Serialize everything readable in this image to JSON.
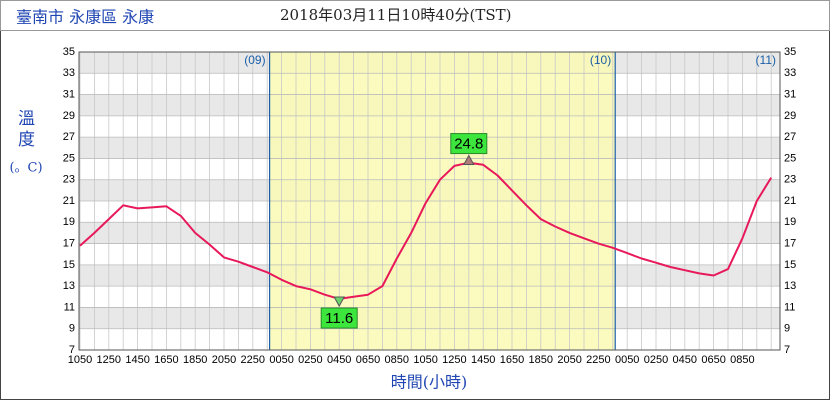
{
  "chart_data": {
    "type": "line",
    "title": "臺南市 永康區 永康",
    "subtitle": "2018年03月11日10時40分(TST)",
    "y_label": "溫度",
    "y_unit": "(。C)",
    "x_label": "時間(小時)",
    "day_labels": [
      "(09)",
      "(10)",
      "(11)"
    ],
    "categories": [
      "1050",
      null,
      "1250",
      null,
      "1450",
      null,
      "1650",
      null,
      "1850",
      null,
      "2050",
      null,
      "2250",
      null,
      "0050",
      null,
      "0250",
      null,
      "0450",
      null,
      "0650",
      null,
      "0850",
      null,
      "1050",
      null,
      "1250",
      null,
      "1450",
      null,
      "1650",
      null,
      "1850",
      null,
      "2050",
      null,
      "2250",
      null,
      "0050",
      null,
      "0250",
      null,
      "0450",
      null,
      "0650",
      null,
      "0850",
      null,
      null
    ],
    "series": [
      {
        "color": "#e8195a",
        "values": [
          16.8,
          18.0,
          19.3,
          20.6,
          20.3,
          20.4,
          20.5,
          19.6,
          18.0,
          16.9,
          15.7,
          15.3,
          14.8,
          14.3,
          13.6,
          13.0,
          12.7,
          12.2,
          11.8,
          12.0,
          12.2,
          13.0,
          15.6,
          18.0,
          20.8,
          23.0,
          24.3,
          24.6,
          24.4,
          23.4,
          22.0,
          20.6,
          19.3,
          18.6,
          18.0,
          17.5,
          17.0,
          16.6,
          16.1,
          15.6,
          15.2,
          14.8,
          14.5,
          14.2,
          14.0,
          14.6,
          17.5,
          21.0,
          23.2
        ]
      }
    ],
    "max_label": 24.8,
    "min_label": 11.6,
    "ylim": [
      7,
      35
    ],
    "yticks": [
      7,
      9,
      11,
      13,
      15,
      17,
      19,
      21,
      23,
      25,
      27,
      29,
      31,
      33,
      35
    ],
    "grid": true
  }
}
